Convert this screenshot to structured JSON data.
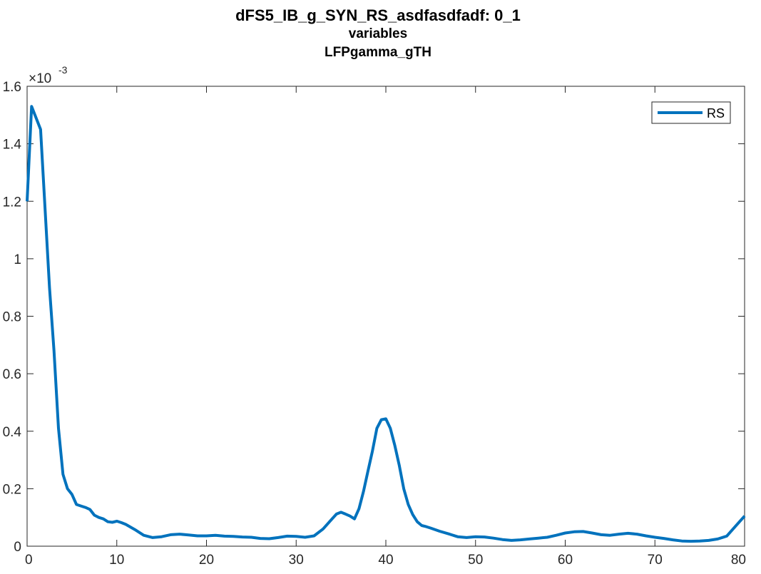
{
  "chart_data": {
    "type": "line",
    "title": "dFS5_IB_g_SYN_RS_asdfasdfadf: 0_1",
    "subtitle_lines": [
      "variables",
      "LFPgamma_gTH"
    ],
    "xlabel": "",
    "ylabel": "",
    "xlim": [
      0,
      80
    ],
    "ylim": [
      0,
      1.6
    ],
    "x_ticks": [
      "0",
      "10",
      "20",
      "30",
      "40",
      "50",
      "60",
      "70",
      "80"
    ],
    "y_ticks": [
      "0",
      "0.2",
      "0.4",
      "0.6",
      "0.8",
      "1",
      "1.2",
      "1.4",
      "1.6"
    ],
    "y_exponent_label": "×10",
    "y_exponent_power": "-3",
    "grid": false,
    "legend_position": "top-right",
    "series": [
      {
        "name": "RS",
        "color": "#0072BD",
        "x": [
          0,
          0.5,
          1.5,
          2.5,
          3,
          3.5,
          4,
          4.5,
          5,
          5.5,
          6,
          6.5,
          7,
          7.5,
          8,
          8.5,
          9,
          9.5,
          10,
          10.5,
          11,
          12,
          13,
          14,
          15,
          16,
          17,
          18,
          19,
          20,
          21,
          22,
          23,
          24,
          25,
          26,
          27,
          28,
          29,
          30,
          31,
          32,
          33,
          34,
          34.5,
          35,
          35.5,
          36,
          36.5,
          37,
          37.5,
          38,
          38.5,
          39,
          39.5,
          40,
          40.5,
          41,
          41.5,
          42,
          42.5,
          43,
          43.5,
          44,
          44.5,
          45,
          46,
          47,
          48,
          49,
          50,
          51,
          52,
          53,
          54,
          55,
          56,
          57,
          58,
          59,
          60,
          61,
          62,
          63,
          64,
          65,
          66,
          67,
          68,
          69,
          70,
          71,
          72,
          73,
          74,
          75,
          76,
          77,
          78,
          79,
          80
        ],
        "values": [
          1.2,
          1.53,
          1.45,
          0.9,
          0.68,
          0.41,
          0.25,
          0.2,
          0.18,
          0.145,
          0.14,
          0.135,
          0.128,
          0.108,
          0.1,
          0.095,
          0.085,
          0.083,
          0.087,
          0.082,
          0.076,
          0.058,
          0.038,
          0.03,
          0.033,
          0.04,
          0.042,
          0.039,
          0.036,
          0.036,
          0.038,
          0.035,
          0.034,
          0.032,
          0.031,
          0.027,
          0.026,
          0.03,
          0.035,
          0.034,
          0.031,
          0.036,
          0.06,
          0.095,
          0.112,
          0.118,
          0.112,
          0.105,
          0.095,
          0.13,
          0.19,
          0.26,
          0.33,
          0.41,
          0.44,
          0.443,
          0.41,
          0.35,
          0.28,
          0.2,
          0.145,
          0.11,
          0.085,
          0.072,
          0.068,
          0.063,
          0.052,
          0.043,
          0.033,
          0.03,
          0.033,
          0.032,
          0.028,
          0.023,
          0.02,
          0.022,
          0.025,
          0.028,
          0.031,
          0.038,
          0.046,
          0.05,
          0.051,
          0.046,
          0.04,
          0.038,
          0.042,
          0.045,
          0.042,
          0.036,
          0.031,
          0.027,
          0.022,
          0.018,
          0.017,
          0.018,
          0.02,
          0.025,
          0.035,
          0.07,
          0.105
        ]
      }
    ]
  }
}
